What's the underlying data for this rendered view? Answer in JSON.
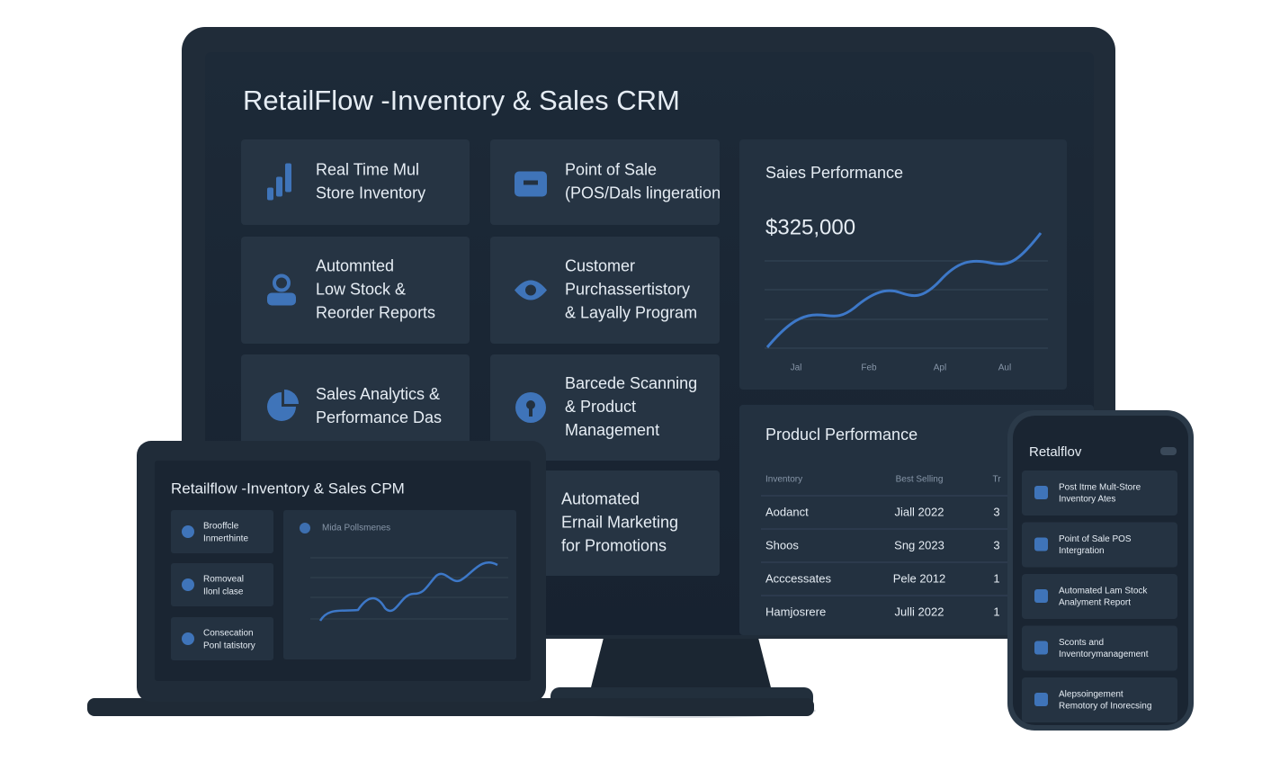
{
  "monitor": {
    "title": "RetailFlow -Inventory & Sales CRM",
    "features": [
      {
        "lines": [
          "Real Time Mul",
          "Store Inventory"
        ]
      },
      {
        "lines": [
          "Point of Sale",
          "(POS/Dals lingeration"
        ]
      },
      {
        "lines": [
          "Automnted",
          "Low Stock &",
          "Reorder Reports"
        ]
      },
      {
        "lines": [
          "Customer",
          "Purchassertistory",
          "& Layally Program"
        ]
      },
      {
        "lines": [
          "Sales Analytics &",
          "Performance Das"
        ]
      },
      {
        "lines": [
          "Barcede Scanning",
          "& Product",
          "Management"
        ]
      },
      {
        "lines": [
          "Automated",
          "Ernail Marketing",
          "for Promotions"
        ]
      }
    ],
    "sales_performance": {
      "title": "Saies Performance",
      "value": "$325,000",
      "months": [
        "Jal",
        "Feb",
        "Apl",
        "Aul"
      ]
    },
    "product_performance": {
      "title": "Producl Performance",
      "columns": [
        "Inventory",
        "Best Selling",
        "Tr"
      ],
      "rows": [
        [
          "Aodanct",
          "Jiall 2022",
          "3"
        ],
        [
          "Shoos",
          "Sng 2023",
          "3"
        ],
        [
          "Acccessates",
          "Pele 2012",
          "1"
        ],
        [
          "Hamjosrere",
          "Julli 2022",
          "1"
        ]
      ]
    }
  },
  "laptop": {
    "title": "Retailflow -Inventory & Sales CPM",
    "cards": [
      {
        "lines": [
          "Brooffcle",
          "Inmerthinte"
        ]
      },
      {
        "lines": [
          "Romoveal",
          "Ilonl clase"
        ]
      },
      {
        "lines": [
          "Consecation",
          "Ponl tatistory"
        ]
      }
    ],
    "chart_title": "Mida Pollsmenes"
  },
  "phone": {
    "title": "Retalflov",
    "items": [
      {
        "lines": [
          "Post Itme Mult-Store",
          "Inventory Ates"
        ]
      },
      {
        "lines": [
          "Point of Sale POS",
          "Intergration"
        ]
      },
      {
        "lines": [
          "Automated Lam Stock",
          "Analyment Report"
        ]
      },
      {
        "lines": [
          "Sconts and",
          "Inventorymanagement"
        ]
      },
      {
        "lines": [
          "Alepsoingement",
          "Remotory of Inorecsing"
        ]
      }
    ]
  }
}
